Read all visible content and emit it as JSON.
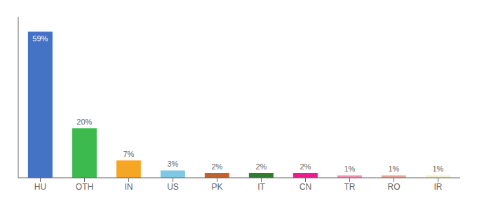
{
  "chart_data": {
    "type": "bar",
    "categories": [
      "HU",
      "OTH",
      "IN",
      "US",
      "PK",
      "IT",
      "CN",
      "TR",
      "RO",
      "IR"
    ],
    "values": [
      59,
      20,
      7,
      3,
      2,
      2,
      2,
      1,
      1,
      1
    ],
    "value_labels": [
      "59%",
      "20%",
      "7%",
      "3%",
      "2%",
      "2%",
      "2%",
      "1%",
      "1%",
      "1%"
    ],
    "colors": [
      "#4472c4",
      "#3dba4e",
      "#f5a623",
      "#7ec8e3",
      "#c0622b",
      "#2e7d32",
      "#e91e8c",
      "#f48fb1",
      "#e8a598",
      "#f5f0d0"
    ],
    "ylim": [
      0,
      65
    ],
    "data_labels": true,
    "tick_labels": "x",
    "grid": false
  }
}
